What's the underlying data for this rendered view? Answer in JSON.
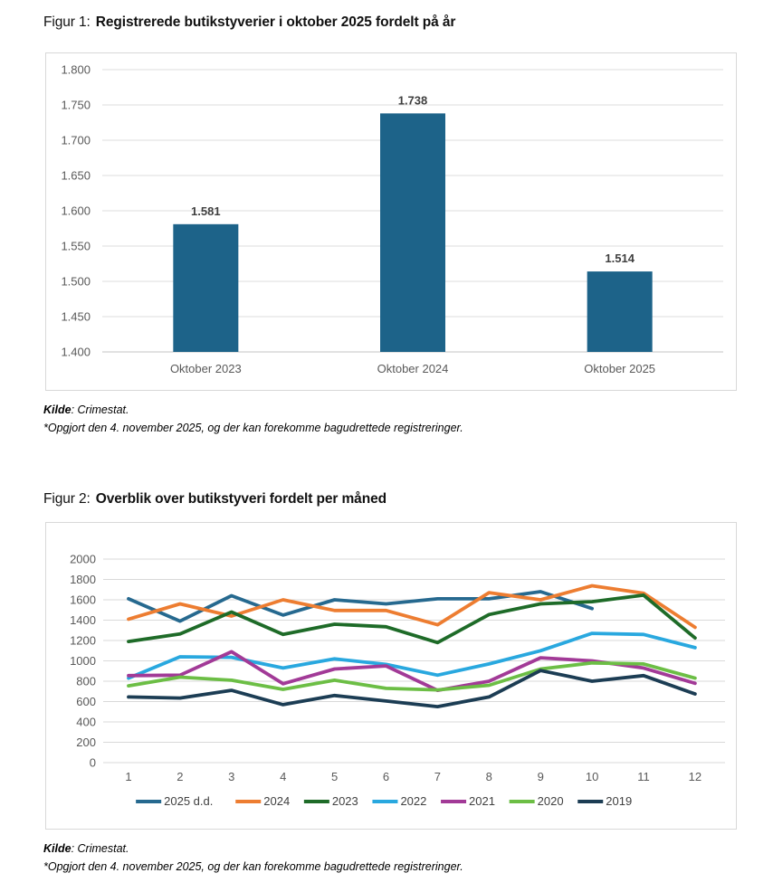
{
  "figure1": {
    "label": "Figur 1:",
    "title": "Registrerede butikstyverier i oktober 2025 fordelt på år",
    "source_bold": "Kilde",
    "source_rest": ": Crimestat.",
    "footnote": "*Opgjort den 4. november 2025, og der kan forekomme bagudrettede registreringer.",
    "chart_data": {
      "type": "bar",
      "categories": [
        "Oktober 2023",
        "Oktober 2024",
        "Oktober 2025"
      ],
      "values": [
        1581,
        1738,
        1514
      ],
      "value_labels": [
        "1.581",
        "1.738",
        "1.514"
      ],
      "ylim": [
        1400,
        1800
      ],
      "ytick_step": 50,
      "ytick_labels": [
        "1.400",
        "1.450",
        "1.500",
        "1.550",
        "1.600",
        "1.650",
        "1.700",
        "1.750",
        "1.800"
      ],
      "bar_color": "#1d6389",
      "grid": true,
      "legend_position": "none",
      "xlabel": "",
      "ylabel": ""
    }
  },
  "figure2": {
    "label": "Figur 2:",
    "title": "Overblik over butikstyveri fordelt per måned",
    "source_bold": "Kilde",
    "source_rest": ": Crimestat.",
    "footnote": "*Opgjort den 4. november 2025, og der kan forekomme bagudrettede registreringer.",
    "chart_data": {
      "type": "line",
      "x": [
        1,
        2,
        3,
        4,
        5,
        6,
        7,
        8,
        9,
        10,
        11,
        12
      ],
      "ylim": [
        0,
        2000
      ],
      "ytick_step": 200,
      "grid": true,
      "legend_position": "bottom",
      "xlabel": "",
      "ylabel": "",
      "series": [
        {
          "name": "2025 d.d.",
          "color": "#26698f",
          "values": [
            1610,
            1390,
            1640,
            1450,
            1600,
            1560,
            1610,
            1610,
            1680,
            1514,
            null,
            null
          ]
        },
        {
          "name": "2024",
          "color": "#ed7d31",
          "values": [
            1410,
            1560,
            1440,
            1600,
            1495,
            1495,
            1355,
            1670,
            1600,
            1738,
            1665,
            1330
          ]
        },
        {
          "name": "2023",
          "color": "#1e6b28",
          "values": [
            1190,
            1265,
            1480,
            1260,
            1360,
            1335,
            1180,
            1455,
            1560,
            1581,
            1645,
            1225
          ]
        },
        {
          "name": "2022",
          "color": "#29a8df",
          "values": [
            830,
            1040,
            1035,
            930,
            1020,
            965,
            860,
            970,
            1100,
            1270,
            1260,
            1130
          ]
        },
        {
          "name": "2021",
          "color": "#a23a97",
          "values": [
            855,
            860,
            1090,
            775,
            920,
            950,
            710,
            800,
            1030,
            1000,
            930,
            780
          ]
        },
        {
          "name": "2020",
          "color": "#6cbe45",
          "values": [
            755,
            840,
            810,
            720,
            810,
            730,
            715,
            760,
            920,
            980,
            970,
            830
          ]
        },
        {
          "name": "2019",
          "color": "#1c3d54",
          "values": [
            645,
            635,
            710,
            570,
            660,
            605,
            550,
            645,
            905,
            800,
            855,
            675
          ]
        }
      ]
    }
  }
}
